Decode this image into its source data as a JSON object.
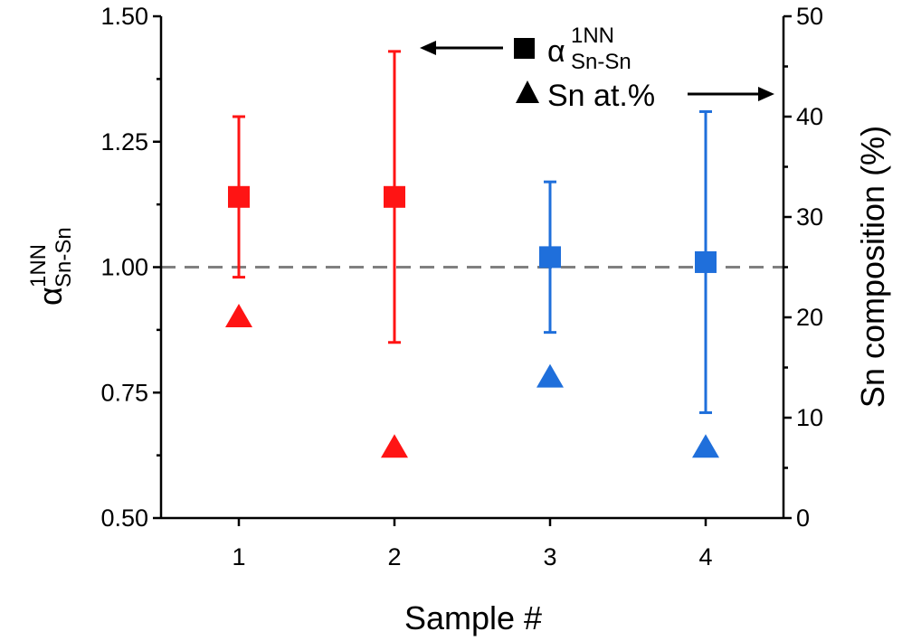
{
  "chart_data": {
    "type": "scatter",
    "xlabel": "Sample #",
    "ylabel_left": {
      "symbol": "α",
      "sup": "1NN",
      "sub": "Sn-Sn"
    },
    "ylabel_right": "Sn composition (%)",
    "x_ticks": [
      "1",
      "2",
      "3",
      "4"
    ],
    "xlim": [
      0.5,
      4.5
    ],
    "ylim_left": [
      0.5,
      1.5
    ],
    "ylim_right": [
      0,
      50
    ],
    "left_ticks": [
      "0.50",
      "0.75",
      "1.00",
      "1.25",
      "1.50"
    ],
    "left_tick_values": [
      0.5,
      0.75,
      1.0,
      1.25,
      1.5
    ],
    "right_ticks": [
      "0",
      "10",
      "20",
      "30",
      "40",
      "50"
    ],
    "right_tick_values": [
      0,
      10,
      20,
      30,
      40,
      50
    ],
    "reference_line": {
      "y": 1.0,
      "axis": "left",
      "style": "dashed",
      "color": "#808080"
    },
    "series": [
      {
        "name": "α 1NN Sn-Sn",
        "marker": "square",
        "axis": "left",
        "x": [
          1,
          2,
          3,
          4
        ],
        "y": [
          1.14,
          1.14,
          1.02,
          1.01
        ],
        "err_low": [
          0.98,
          0.85,
          0.87,
          0.71
        ],
        "err_high": [
          1.3,
          1.43,
          1.17,
          1.31
        ],
        "colors": [
          "#ff1414",
          "#ff1414",
          "#1f6fdb",
          "#1f6fdb"
        ]
      },
      {
        "name": "Sn at.%",
        "marker": "triangle",
        "axis": "right",
        "x": [
          1,
          2,
          3,
          4
        ],
        "y": [
          20,
          7,
          14,
          7
        ],
        "colors": [
          "#ff1414",
          "#ff1414",
          "#1f6fdb",
          "#1f6fdb"
        ]
      }
    ],
    "legend": [
      {
        "marker": "square",
        "symbol": "α",
        "sup": "1NN",
        "sub": "Sn-Sn",
        "arrow": "left"
      },
      {
        "marker": "triangle",
        "label": "Sn at.%",
        "arrow": "right"
      }
    ]
  }
}
